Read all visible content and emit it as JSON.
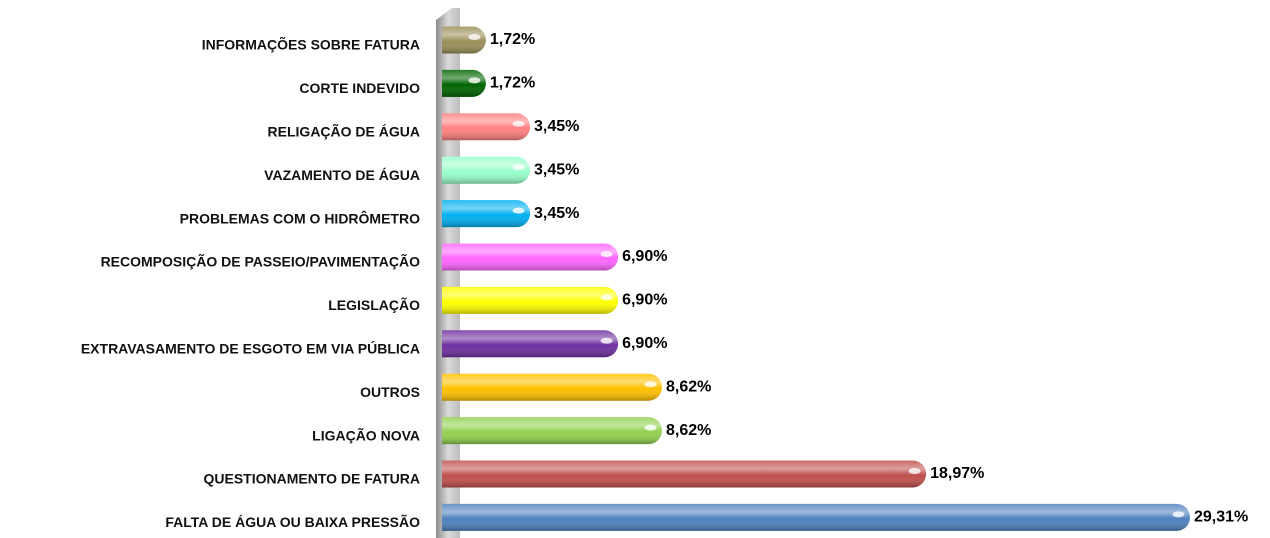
{
  "chart_data": {
    "type": "bar",
    "orientation": "horizontal",
    "categories": [
      "INFORMAÇÕES SOBRE FATURA",
      "CORTE INDEVIDO",
      "RELIGAÇÃO DE ÁGUA",
      "VAZAMENTO DE ÁGUA",
      "PROBLEMAS COM O HIDRÔMETRO",
      "RECOMPOSIÇÃO DE PASSEIO/PAVIMENTAÇÃO",
      "LEGISLAÇÃO",
      "EXTRAVASAMENTO DE ESGOTO EM VIA PÚBLICA",
      "OUTROS",
      "LIGAÇÃO NOVA",
      "QUESTIONAMENTO DE FATURA",
      "FALTA DE ÁGUA OU BAIXA PRESSÃO"
    ],
    "values": [
      1.72,
      1.72,
      3.45,
      3.45,
      3.45,
      6.9,
      6.9,
      6.9,
      8.62,
      8.62,
      18.97,
      29.31
    ],
    "value_labels": [
      "1,72%",
      "1,72%",
      "3,45%",
      "3,45%",
      "3,45%",
      "6,90%",
      "6,90%",
      "6,90%",
      "8,62%",
      "8,62%",
      "18,97%",
      "29,31%"
    ],
    "colors": [
      "#9b8f5a",
      "#006400",
      "#ff8080",
      "#99ffcc",
      "#00b0f0",
      "#ff66ff",
      "#ffff00",
      "#7030a0",
      "#ffc000",
      "#92d050",
      "#c0504d",
      "#4f81bd"
    ]
  }
}
